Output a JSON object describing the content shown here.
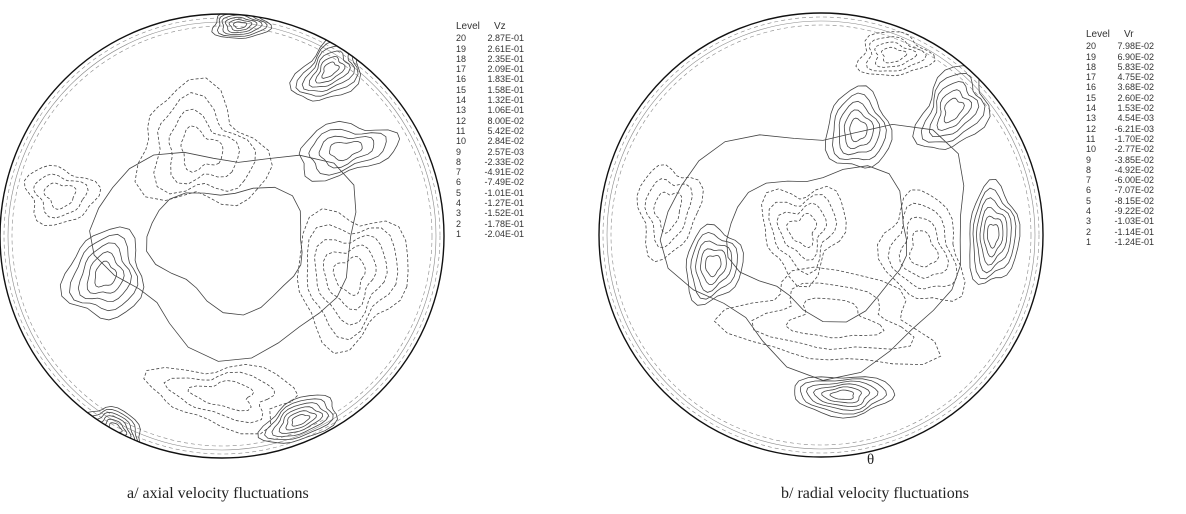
{
  "chart_data": [
    {
      "type": "contour",
      "variable": "Vz",
      "legend_header": {
        "level": "Level",
        "variable": "Vz"
      },
      "levels": [
        {
          "level": "20",
          "value": "2.87E-01"
        },
        {
          "level": "19",
          "value": "2.61E-01"
        },
        {
          "level": "18",
          "value": "2.35E-01"
        },
        {
          "level": "17",
          "value": "2.09E-01"
        },
        {
          "level": "16",
          "value": "1.83E-01"
        },
        {
          "level": "15",
          "value": "1.58E-01"
        },
        {
          "level": "14",
          "value": "1.32E-01"
        },
        {
          "level": "13",
          "value": "1.06E-01"
        },
        {
          "level": "12",
          "value": "8.00E-02"
        },
        {
          "level": "11",
          "value": "5.42E-02"
        },
        {
          "level": "10",
          "value": "2.84E-02"
        },
        {
          "level": "9",
          "value": "2.57E-03"
        },
        {
          "level": "8",
          "value": "-2.33E-02"
        },
        {
          "level": "7",
          "value": "-4.91E-02"
        },
        {
          "level": "6",
          "value": "-7.49E-02"
        },
        {
          "level": "5",
          "value": "-1.01E-01"
        },
        {
          "level": "4",
          "value": "-1.27E-01"
        },
        {
          "level": "3",
          "value": "-1.52E-01"
        },
        {
          "level": "2",
          "value": "-1.78E-01"
        },
        {
          "level": "1",
          "value": "-2.04E-01"
        }
      ],
      "caption": "a/ axial velocity fluctuations"
    },
    {
      "type": "contour",
      "variable": "Vr",
      "legend_header": {
        "level": "Level",
        "variable": "Vr"
      },
      "levels": [
        {
          "level": "20",
          "value": "7.98E-02"
        },
        {
          "level": "19",
          "value": "6.90E-02"
        },
        {
          "level": "18",
          "value": "5.83E-02"
        },
        {
          "level": "17",
          "value": "4.75E-02"
        },
        {
          "level": "16",
          "value": "3.68E-02"
        },
        {
          "level": "15",
          "value": "2.60E-02"
        },
        {
          "level": "14",
          "value": "1.53E-02"
        },
        {
          "level": "13",
          "value": "4.54E-03"
        },
        {
          "level": "12",
          "value": "-6.21E-03"
        },
        {
          "level": "11",
          "value": "-1.70E-02"
        },
        {
          "level": "10",
          "value": "-2.77E-02"
        },
        {
          "level": "9",
          "value": "-3.85E-02"
        },
        {
          "level": "8",
          "value": "-4.92E-02"
        },
        {
          "level": "7",
          "value": "-6.00E-02"
        },
        {
          "level": "6",
          "value": "-7.07E-02"
        },
        {
          "level": "5",
          "value": "-8.15E-02"
        },
        {
          "level": "4",
          "value": "-9.22E-02"
        },
        {
          "level": "3",
          "value": "-1.03E-01"
        },
        {
          "level": "2",
          "value": "-1.14E-01"
        },
        {
          "level": "1",
          "value": "-1.24E-01"
        }
      ],
      "angle_label": "θ",
      "caption": "b/ radial velocity fluctuations"
    }
  ]
}
